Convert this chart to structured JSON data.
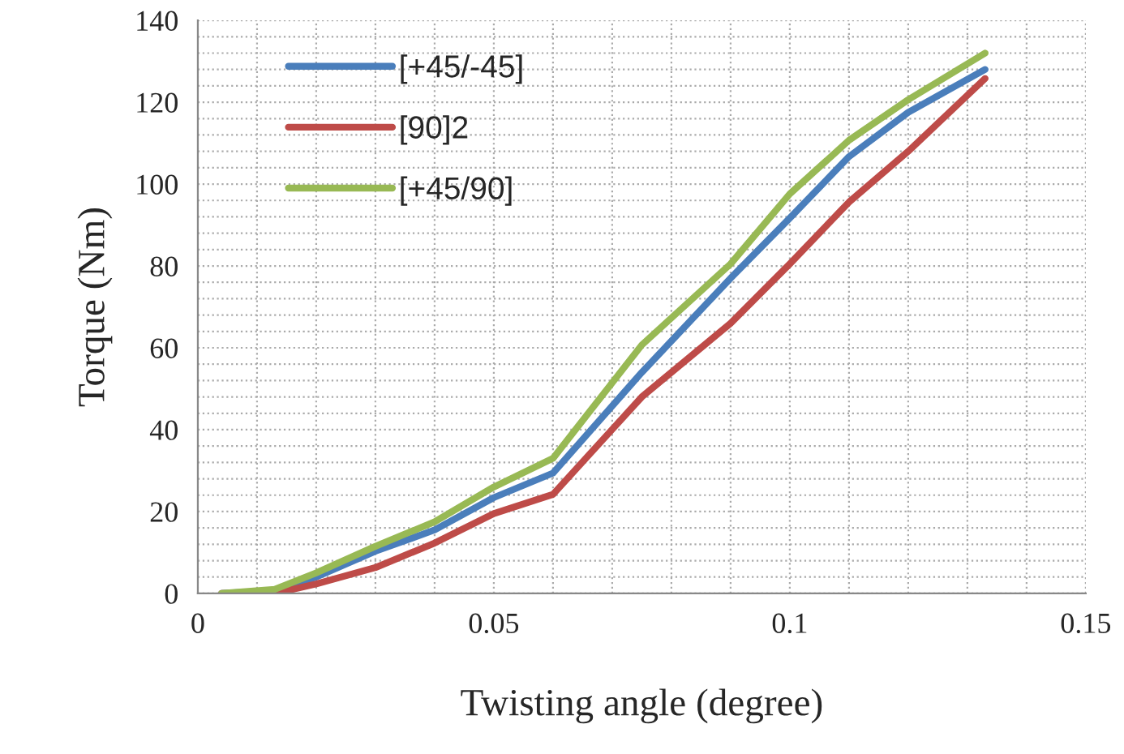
{
  "chart_data": {
    "type": "line",
    "xlabel": "Twisting angle (degree)",
    "ylabel": "Torque (Nm)",
    "xlim": [
      0,
      0.15
    ],
    "xticks": [
      0,
      0.05,
      0.1,
      0.15
    ],
    "ylim": [
      0,
      140
    ],
    "yticks": [
      0,
      20,
      40,
      60,
      80,
      100,
      120,
      140
    ],
    "grid": true,
    "legend": "top left",
    "marker": "none",
    "line_style": "solid",
    "x": [
      0.004,
      0.013,
      0.02,
      0.03,
      0.04,
      0.05,
      0.06,
      0.075,
      0.09,
      0.1,
      0.11,
      0.12,
      0.133
    ],
    "series": [
      {
        "name": "[+45/-45]",
        "color": "#4a7ebb",
        "values": [
          0,
          0.7,
          4,
          10.3,
          15.5,
          23.4,
          29.4,
          54,
          77,
          91.7,
          106.7,
          117.5,
          128
        ]
      },
      {
        "name": "[90]2",
        "color": "#be4b48",
        "values": [
          0,
          0,
          2.3,
          6.3,
          12.3,
          19.5,
          24.2,
          48,
          66,
          80.5,
          95.6,
          108,
          125.8
        ]
      },
      {
        "name": "[+45/90]",
        "color": "#98b954",
        "values": [
          0,
          1,
          5,
          11.5,
          17.5,
          26,
          33,
          60.7,
          80.5,
          97.6,
          110.7,
          120.6,
          132
        ]
      }
    ]
  }
}
